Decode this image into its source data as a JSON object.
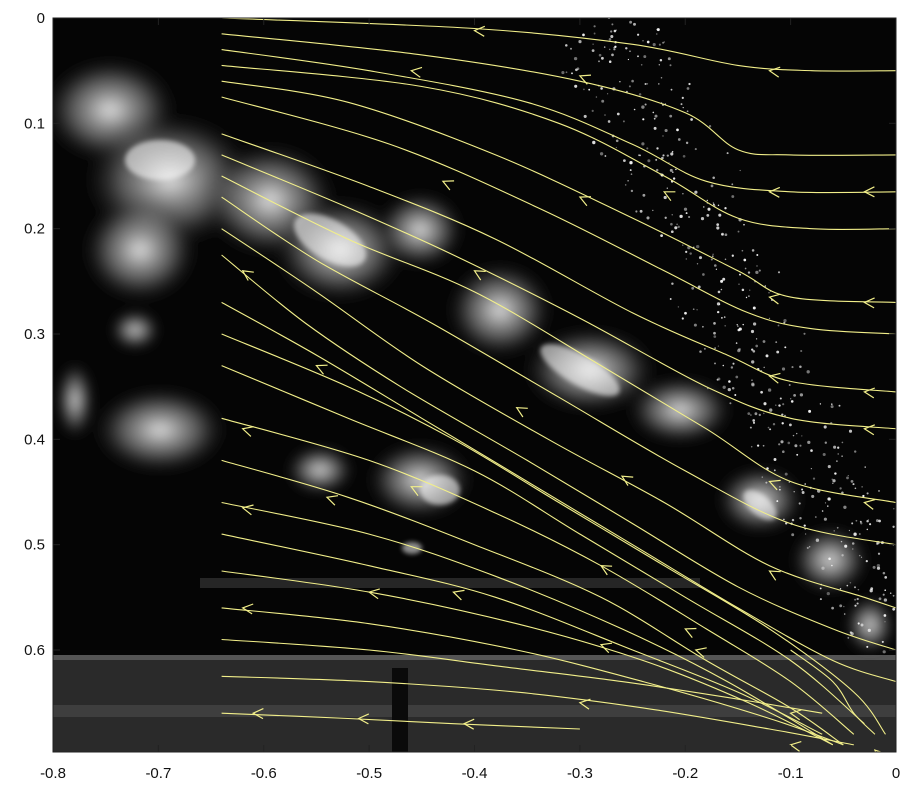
{
  "colors": {
    "streamline": "#f2ef8a",
    "frame_bg": "#050505",
    "smoke": "#e6e6e6",
    "axis": "#222222"
  },
  "chart_data": {
    "type": "scatter",
    "title": "",
    "xlabel": "",
    "ylabel": "",
    "xlim": [
      -0.8,
      0
    ],
    "ylim": [
      0,
      0.7
    ],
    "y_reversed": true,
    "grid": false,
    "background": "grayscale flow photograph (smoke / particle visualization)",
    "x_ticks": [
      -0.8,
      -0.7,
      -0.6,
      -0.5,
      -0.4,
      -0.3,
      -0.2,
      -0.1,
      0
    ],
    "x_tick_labels": [
      "-0.8",
      "-0.7",
      "-0.6",
      "-0.5",
      "-0.4",
      "-0.3",
      "-0.2",
      "-0.1",
      "0"
    ],
    "y_ticks": [
      0,
      0.1,
      0.2,
      0.3,
      0.4,
      0.5,
      0.6
    ],
    "y_tick_labels": [
      "0",
      "0.1",
      "0.2",
      "0.3",
      "0.4",
      "0.5",
      "0.6"
    ],
    "series": [
      {
        "points": [
          [
            -0.64,
            0.0
          ],
          [
            -0.4,
            0.01
          ],
          [
            -0.25,
            0.025
          ],
          [
            -0.15,
            0.045
          ],
          [
            -0.08,
            0.05
          ],
          [
            0.0,
            0.05
          ]
        ],
        "arrows": [
          [
            -0.12,
            0.05
          ],
          [
            -0.4,
            0.012
          ]
        ]
      },
      {
        "points": [
          [
            -0.64,
            0.015
          ],
          [
            -0.45,
            0.035
          ],
          [
            -0.3,
            0.06
          ],
          [
            -0.2,
            0.09
          ],
          [
            -0.15,
            0.125
          ],
          [
            -0.1,
            0.13
          ],
          [
            0.0,
            0.13
          ]
        ],
        "arrows": []
      },
      {
        "points": [
          [
            -0.64,
            0.03
          ],
          [
            -0.5,
            0.05
          ],
          [
            -0.35,
            0.08
          ],
          [
            -0.25,
            0.12
          ],
          [
            -0.18,
            0.155
          ],
          [
            -0.1,
            0.165
          ],
          [
            0.0,
            0.165
          ]
        ],
        "arrows": [
          [
            -0.03,
            0.165
          ],
          [
            -0.12,
            0.165
          ]
        ]
      },
      {
        "points": [
          [
            -0.64,
            0.045
          ],
          [
            -0.45,
            0.065
          ],
          [
            -0.32,
            0.1
          ],
          [
            -0.22,
            0.15
          ],
          [
            -0.15,
            0.19
          ],
          [
            -0.08,
            0.2
          ],
          [
            0.0,
            0.2
          ]
        ],
        "arrows": [
          [
            -0.46,
            0.05
          ]
        ]
      },
      {
        "points": [
          [
            -0.64,
            0.06
          ],
          [
            -0.52,
            0.08
          ],
          [
            -0.38,
            0.13
          ],
          [
            -0.25,
            0.19
          ],
          [
            -0.15,
            0.24
          ],
          [
            -0.1,
            0.265
          ],
          [
            0.0,
            0.27
          ]
        ],
        "arrows": [
          [
            -0.03,
            0.27
          ],
          [
            -0.12,
            0.265
          ],
          [
            -0.3,
            0.055
          ]
        ]
      },
      {
        "points": [
          [
            -0.64,
            0.075
          ],
          [
            -0.48,
            0.12
          ],
          [
            -0.34,
            0.18
          ],
          [
            -0.22,
            0.24
          ],
          [
            -0.14,
            0.28
          ],
          [
            -0.08,
            0.295
          ],
          [
            0.0,
            0.3
          ]
        ],
        "arrows": [
          [
            -0.3,
            0.17
          ]
        ]
      },
      {
        "points": [
          [
            -0.64,
            0.11
          ],
          [
            -0.5,
            0.16
          ],
          [
            -0.38,
            0.21
          ],
          [
            -0.25,
            0.28
          ],
          [
            -0.16,
            0.32
          ],
          [
            -0.1,
            0.345
          ],
          [
            0.0,
            0.355
          ]
        ],
        "arrows": [
          [
            -0.03,
            0.355
          ],
          [
            -0.12,
            0.34
          ],
          [
            -0.22,
            0.165
          ]
        ]
      },
      {
        "points": [
          [
            -0.64,
            0.13
          ],
          [
            -0.52,
            0.18
          ],
          [
            -0.42,
            0.225
          ],
          [
            -0.3,
            0.285
          ],
          [
            -0.18,
            0.35
          ],
          [
            -0.1,
            0.38
          ],
          [
            0.0,
            0.39
          ]
        ],
        "arrows": [
          [
            -0.03,
            0.39
          ]
        ]
      },
      {
        "points": [
          [
            -0.64,
            0.15
          ],
          [
            -0.52,
            0.21
          ],
          [
            -0.4,
            0.26
          ],
          [
            -0.28,
            0.33
          ],
          [
            -0.18,
            0.39
          ],
          [
            -0.1,
            0.44
          ],
          [
            0.0,
            0.46
          ]
        ],
        "arrows": [
          [
            -0.03,
            0.46
          ],
          [
            -0.12,
            0.44
          ],
          [
            -0.43,
            0.155
          ]
        ]
      },
      {
        "points": [
          [
            -0.64,
            0.17
          ],
          [
            -0.55,
            0.23
          ],
          [
            -0.44,
            0.29
          ],
          [
            -0.32,
            0.36
          ],
          [
            -0.2,
            0.43
          ],
          [
            -0.1,
            0.48
          ],
          [
            0.0,
            0.5
          ]
        ],
        "arrows": [
          [
            -0.4,
            0.24
          ]
        ]
      },
      {
        "points": [
          [
            -0.64,
            0.2
          ],
          [
            -0.55,
            0.26
          ],
          [
            -0.45,
            0.33
          ],
          [
            -0.33,
            0.4
          ],
          [
            -0.22,
            0.46
          ],
          [
            -0.12,
            0.52
          ],
          [
            -0.03,
            0.55
          ],
          [
            0.0,
            0.56
          ]
        ],
        "arrows": [
          [
            -0.62,
            0.24
          ],
          [
            -0.36,
            0.37
          ]
        ]
      },
      {
        "points": [
          [
            -0.64,
            0.225
          ],
          [
            -0.56,
            0.29
          ],
          [
            -0.47,
            0.35
          ],
          [
            -0.35,
            0.42
          ],
          [
            -0.25,
            0.48
          ],
          [
            -0.15,
            0.54
          ],
          [
            -0.06,
            0.58
          ],
          [
            0.0,
            0.6
          ]
        ],
        "arrows": [
          [
            -0.26,
            0.435
          ]
        ]
      },
      {
        "points": [
          [
            -0.64,
            0.27
          ],
          [
            -0.55,
            0.32
          ],
          [
            -0.45,
            0.38
          ],
          [
            -0.35,
            0.44
          ],
          [
            -0.25,
            0.5
          ],
          [
            -0.15,
            0.56
          ],
          [
            -0.06,
            0.61
          ],
          [
            0.0,
            0.63
          ]
        ],
        "arrows": [
          [
            -0.12,
            0.525
          ]
        ]
      },
      {
        "points": [
          [
            -0.64,
            0.3
          ],
          [
            -0.52,
            0.35
          ],
          [
            -0.42,
            0.4
          ],
          [
            -0.32,
            0.46
          ],
          [
            -0.22,
            0.52
          ],
          [
            -0.12,
            0.58
          ],
          [
            -0.04,
            0.64
          ],
          [
            -0.01,
            0.68
          ]
        ],
        "arrows": [
          [
            -0.55,
            0.33
          ]
        ]
      },
      {
        "points": [
          [
            -0.64,
            0.33
          ],
          [
            -0.52,
            0.38
          ],
          [
            -0.4,
            0.43
          ],
          [
            -0.3,
            0.49
          ],
          [
            -0.2,
            0.55
          ],
          [
            -0.1,
            0.61
          ],
          [
            -0.03,
            0.67
          ]
        ],
        "arrows": [
          [
            -0.46,
            0.445
          ]
        ]
      },
      {
        "points": [
          [
            -0.64,
            0.38
          ],
          [
            -0.5,
            0.42
          ],
          [
            -0.38,
            0.47
          ],
          [
            -0.28,
            0.52
          ],
          [
            -0.18,
            0.58
          ],
          [
            -0.1,
            0.63
          ],
          [
            -0.04,
            0.68
          ]
        ],
        "arrows": [
          [
            -0.62,
            0.39
          ],
          [
            -0.28,
            0.52
          ]
        ]
      },
      {
        "points": [
          [
            -0.64,
            0.42
          ],
          [
            -0.52,
            0.455
          ],
          [
            -0.4,
            0.5
          ],
          [
            -0.28,
            0.55
          ],
          [
            -0.18,
            0.61
          ],
          [
            -0.1,
            0.655
          ],
          [
            -0.05,
            0.69
          ]
        ],
        "arrows": [
          [
            -0.54,
            0.455
          ]
        ]
      },
      {
        "points": [
          [
            -0.64,
            0.46
          ],
          [
            -0.5,
            0.49
          ],
          [
            -0.38,
            0.53
          ],
          [
            -0.26,
            0.58
          ],
          [
            -0.16,
            0.63
          ],
          [
            -0.06,
            0.69
          ]
        ],
        "arrows": [
          [
            -0.62,
            0.465
          ],
          [
            -0.2,
            0.58
          ]
        ]
      },
      {
        "points": [
          [
            -0.64,
            0.49
          ],
          [
            -0.5,
            0.52
          ],
          [
            -0.38,
            0.55
          ],
          [
            -0.25,
            0.6
          ],
          [
            -0.15,
            0.64
          ],
          [
            -0.07,
            0.68
          ]
        ],
        "arrows": [
          [
            -0.42,
            0.545
          ]
        ]
      },
      {
        "points": [
          [
            -0.64,
            0.525
          ],
          [
            -0.5,
            0.545
          ],
          [
            -0.36,
            0.575
          ],
          [
            -0.24,
            0.61
          ],
          [
            -0.14,
            0.65
          ],
          [
            -0.06,
            0.69
          ]
        ],
        "arrows": [
          [
            -0.5,
            0.545
          ],
          [
            -0.28,
            0.595
          ]
        ]
      },
      {
        "points": [
          [
            -0.64,
            0.56
          ],
          [
            -0.5,
            0.575
          ],
          [
            -0.36,
            0.6
          ],
          [
            -0.24,
            0.63
          ],
          [
            -0.12,
            0.665
          ],
          [
            -0.05,
            0.69
          ]
        ],
        "arrows": [
          [
            -0.62,
            0.56
          ],
          [
            -0.19,
            0.6
          ]
        ]
      },
      {
        "points": [
          [
            -0.64,
            0.59
          ],
          [
            -0.5,
            0.6
          ],
          [
            -0.38,
            0.615
          ],
          [
            -0.26,
            0.63
          ],
          [
            -0.16,
            0.645
          ],
          [
            -0.07,
            0.66
          ]
        ],
        "arrows": [
          [
            -0.1,
            0.66
          ]
        ]
      },
      {
        "points": [
          [
            -0.64,
            0.625
          ],
          [
            -0.5,
            0.63
          ],
          [
            -0.36,
            0.64
          ],
          [
            -0.24,
            0.655
          ],
          [
            -0.12,
            0.675
          ],
          [
            -0.04,
            0.69
          ]
        ],
        "arrows": [
          [
            -0.3,
            0.65
          ],
          [
            -0.1,
            0.69
          ]
        ]
      },
      {
        "points": [
          [
            -0.64,
            0.66
          ],
          [
            -0.52,
            0.665
          ],
          [
            -0.42,
            0.67
          ],
          [
            -0.3,
            0.675
          ]
        ],
        "arrows": [
          [
            -0.61,
            0.66
          ],
          [
            -0.51,
            0.665
          ],
          [
            -0.41,
            0.67
          ]
        ]
      },
      {
        "points": [
          [
            -0.02,
            0.68
          ],
          [
            -0.04,
            0.66
          ],
          [
            -0.06,
            0.63
          ],
          [
            -0.1,
            0.6
          ]
        ],
        "arrows": [
          [
            -0.02,
            0.695
          ]
        ]
      }
    ]
  }
}
